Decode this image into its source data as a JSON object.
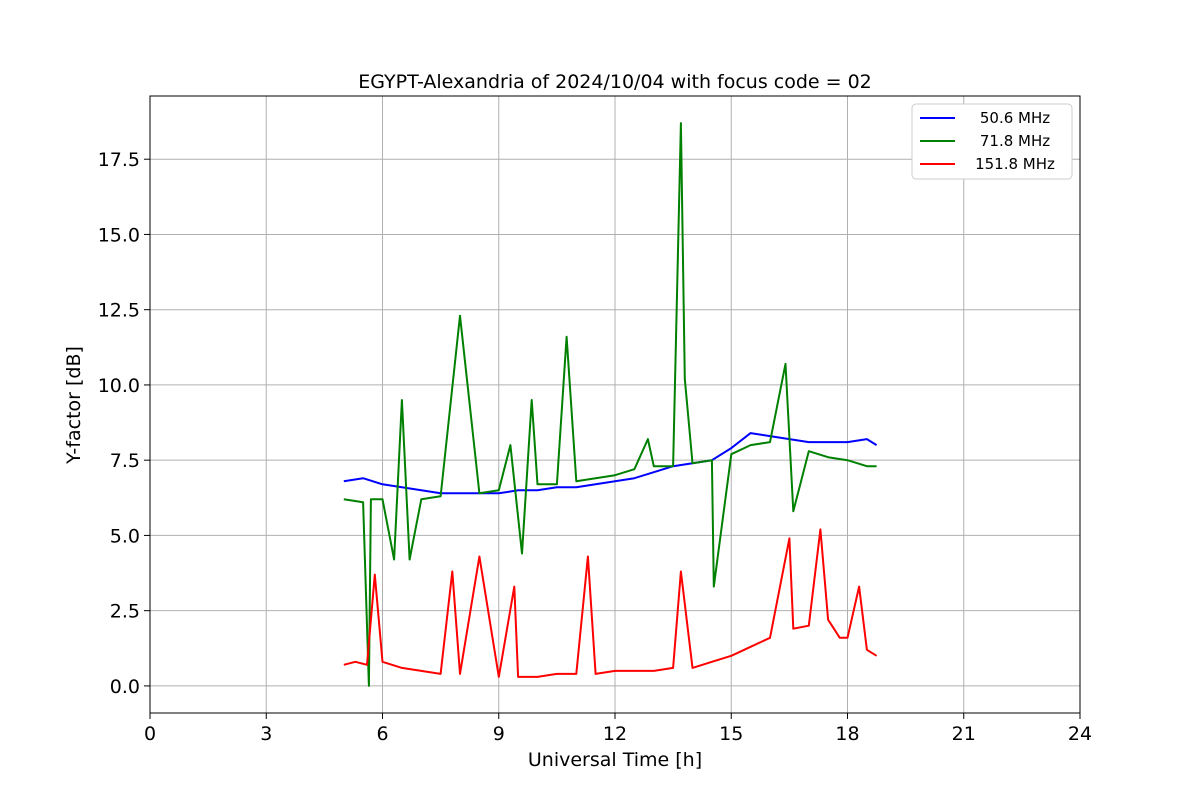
{
  "chart_data": {
    "type": "line",
    "title": "EGYPT-Alexandria of 2024/10/04 with focus code = 02",
    "xlabel": "Universal Time [h]",
    "ylabel": "Y-factor [dB]",
    "xlim": [
      0,
      24
    ],
    "ylim": [
      -0.9,
      19.6
    ],
    "xticks": [
      0,
      3,
      6,
      9,
      12,
      15,
      18,
      21,
      24
    ],
    "xtick_labels": [
      "0",
      "3",
      "6",
      "9",
      "12",
      "15",
      "18",
      "21",
      "24"
    ],
    "yticks": [
      0,
      2.5,
      5,
      7.5,
      10,
      12.5,
      15,
      17.5
    ],
    "ytick_labels": [
      "0.0",
      "2.5",
      "5.0",
      "7.5",
      "10.0",
      "12.5",
      "15.0",
      "17.5"
    ],
    "grid": true,
    "legend": "top-right",
    "series": [
      {
        "name": "50.6 MHz",
        "color": "#0000ff",
        "x": [
          5.0,
          5.5,
          6.0,
          6.5,
          7.0,
          7.5,
          8.0,
          8.5,
          9.0,
          9.5,
          10.0,
          10.5,
          11.0,
          11.5,
          12.0,
          12.5,
          13.0,
          13.5,
          14.0,
          14.5,
          15.0,
          15.5,
          16.0,
          16.5,
          17.0,
          17.5,
          18.0,
          18.5,
          18.75
        ],
        "y": [
          6.8,
          6.9,
          6.7,
          6.6,
          6.5,
          6.4,
          6.4,
          6.4,
          6.4,
          6.5,
          6.5,
          6.6,
          6.6,
          6.7,
          6.8,
          6.9,
          7.1,
          7.3,
          7.4,
          7.5,
          7.9,
          8.4,
          8.3,
          8.2,
          8.1,
          8.1,
          8.1,
          8.2,
          8.0
        ]
      },
      {
        "name": "71.8 MHz",
        "color": "#008000",
        "x": [
          5.0,
          5.5,
          5.65,
          5.7,
          6.0,
          6.3,
          6.5,
          6.7,
          7.0,
          7.5,
          8.0,
          8.5,
          9.0,
          9.3,
          9.6,
          9.85,
          10.0,
          10.5,
          10.75,
          11.0,
          11.5,
          12.0,
          12.5,
          12.85,
          13.0,
          13.5,
          13.7,
          13.8,
          14.0,
          14.5,
          14.55,
          15.0,
          15.5,
          16.0,
          16.4,
          16.6,
          17.0,
          17.5,
          18.0,
          18.5,
          18.75
        ],
        "y": [
          6.2,
          6.1,
          0.0,
          6.2,
          6.2,
          4.2,
          9.5,
          4.2,
          6.2,
          6.3,
          12.3,
          6.4,
          6.5,
          8.0,
          4.4,
          9.5,
          6.7,
          6.7,
          11.6,
          6.8,
          6.9,
          7.0,
          7.2,
          8.2,
          7.3,
          7.3,
          18.7,
          10.2,
          7.4,
          7.5,
          3.3,
          7.7,
          8.0,
          8.1,
          10.7,
          5.8,
          7.8,
          7.6,
          7.5,
          7.3,
          7.3
        ]
      },
      {
        "name": "151.8 MHz",
        "color": "#ff0000",
        "x": [
          5.0,
          5.3,
          5.6,
          5.8,
          6.0,
          6.5,
          7.0,
          7.5,
          7.8,
          8.0,
          8.5,
          9.0,
          9.4,
          9.5,
          10.0,
          10.5,
          11.0,
          11.3,
          11.5,
          12.0,
          12.5,
          13.0,
          13.5,
          13.7,
          14.0,
          14.5,
          15.0,
          15.5,
          16.0,
          16.5,
          16.6,
          17.0,
          17.3,
          17.5,
          17.8,
          18.0,
          18.3,
          18.5,
          18.75
        ],
        "y": [
          0.7,
          0.8,
          0.7,
          3.7,
          0.8,
          0.6,
          0.5,
          0.4,
          3.8,
          0.4,
          4.3,
          0.3,
          3.3,
          0.3,
          0.3,
          0.4,
          0.4,
          4.3,
          0.4,
          0.5,
          0.5,
          0.5,
          0.6,
          3.8,
          0.6,
          0.8,
          1.0,
          1.3,
          1.6,
          4.9,
          1.9,
          2.0,
          5.2,
          2.2,
          1.6,
          1.6,
          3.3,
          1.2,
          1.0
        ]
      }
    ]
  }
}
